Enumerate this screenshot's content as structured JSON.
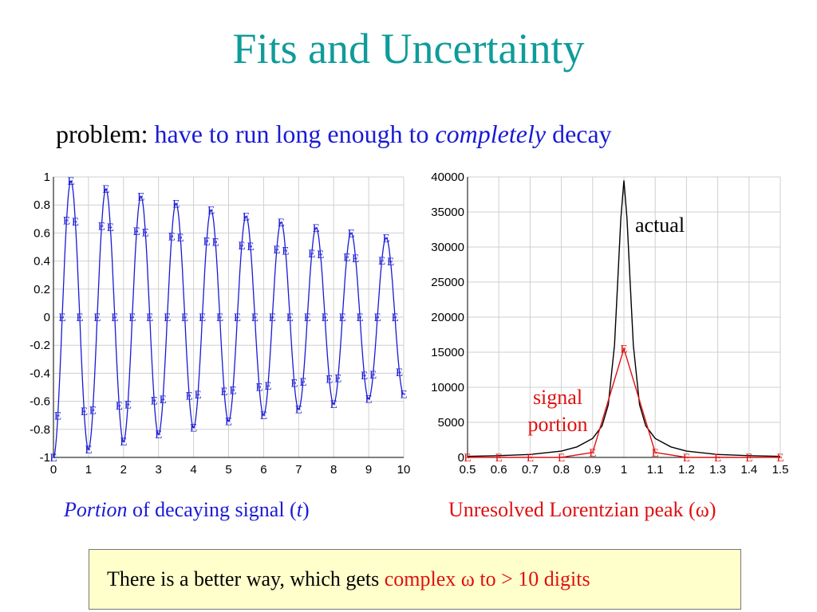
{
  "slide": {
    "title": "Fits and Uncertainty",
    "problem_prefix": "problem: ",
    "problem_blue_1": "have to run long enough to ",
    "problem_italic": "completely",
    "problem_blue_2": " decay",
    "caption_left_italic": "Portion",
    "caption_left_mid": " of decaying signal (",
    "caption_left_t": "t",
    "caption_left_end": ")",
    "caption_right": "Unresolved Lorentzian peak (ω)",
    "note_text": "There is a better way, which gets ",
    "note_red": "complex ω to > 10 digits",
    "actual_label": "actual",
    "signal_label": "signal portion",
    "marker": "E"
  },
  "colors": {
    "title": "#0f9b9b",
    "blue": "#1a1ad6",
    "red": "#e01010",
    "note_bg": "#ffffcc"
  },
  "chart_data": [
    {
      "type": "line",
      "title": "",
      "xlabel": "",
      "ylabel": "",
      "xlim": [
        0,
        10
      ],
      "ylim": [
        -1,
        1
      ],
      "x_ticks": [
        "0",
        "1",
        "2",
        "3",
        "4",
        "5",
        "6",
        "7",
        "8",
        "9",
        "10"
      ],
      "y_ticks": [
        "1",
        "0.8",
        "0.6",
        "0.4",
        "0.2",
        "0",
        "-0.2",
        "-0.4",
        "-0.6",
        "-0.8",
        "-1"
      ],
      "grid": true,
      "series": [
        {
          "color": "#1a1ad6",
          "marker": "E",
          "function": "decaying cosine",
          "period": 1.0,
          "decay_rate": 0.06,
          "amplitude": 1,
          "x_range": [
            0,
            10
          ],
          "sample_step": 0.125
        }
      ]
    },
    {
      "type": "line",
      "title": "",
      "xlabel": "",
      "ylabel": "",
      "xlim": [
        0.5,
        1.5
      ],
      "ylim": [
        0,
        40000
      ],
      "x_ticks": [
        "0.5",
        "0.6",
        "0.7",
        "0.8",
        "0.9",
        "1",
        "1.1",
        "1.2",
        "1.3",
        "1.4",
        "1.5"
      ],
      "y_ticks": [
        "40000",
        "35000",
        "30000",
        "25000",
        "20000",
        "15000",
        "10000",
        "5000",
        "0"
      ],
      "grid": true,
      "series": [
        {
          "name": "actual",
          "color": "#000000",
          "x": [
            0.5,
            0.6,
            0.7,
            0.8,
            0.85,
            0.9,
            0.93,
            0.95,
            0.97,
            0.98,
            0.99,
            1.0,
            1.01,
            1.02,
            1.03,
            1.05,
            1.07,
            1.1,
            1.15,
            1.2,
            1.3,
            1.4,
            1.5
          ],
          "y": [
            150,
            250,
            420,
            900,
            1500,
            2700,
            4500,
            7500,
            16000,
            25000,
            34000,
            39500,
            34000,
            25000,
            16000,
            7500,
            4500,
            2700,
            1500,
            900,
            420,
            250,
            150
          ]
        },
        {
          "name": "signal portion",
          "color": "#e01010",
          "marker": "E",
          "x": [
            0.5,
            0.6,
            0.7,
            0.8,
            0.9,
            1.0,
            1.1,
            1.2,
            1.3,
            1.4,
            1.5
          ],
          "y": [
            0,
            0,
            0,
            0,
            700,
            15500,
            700,
            0,
            0,
            0,
            0
          ]
        }
      ]
    }
  ]
}
